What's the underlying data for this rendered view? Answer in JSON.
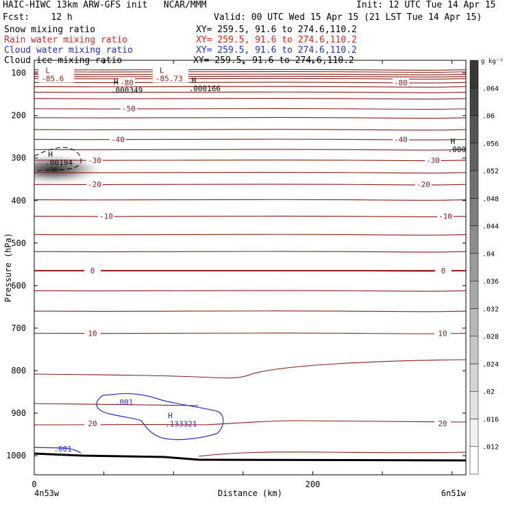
{
  "header": {
    "model_line": "HAIC-HIWC 13km ARW-GFS init   NCAR/MMM",
    "init_line": "Init: 12 UTC Tue 14 Apr 15",
    "fcst_line": "Fcst:    12 h",
    "valid_line": "Valid: 00 UTC Wed 15 Apr 15 (21 LST Tue 14 Apr 15)",
    "fields": [
      {
        "name": "Snow mixing ratio",
        "xy": "XY= 259.5, 91.6 to 274.6,110.2",
        "color": "#000000"
      },
      {
        "name": "Rain water mixing ratio",
        "xy": "XY= 259.5, 91.6 to 274.6,110.2",
        "color": "#e0201c"
      },
      {
        "name": "Cloud water mixing ratio",
        "xy": "XY= 259.5, 91.6 to 274.6,110.2",
        "color": "#1f2fd0"
      },
      {
        "name": "Cloud ice mixing ratio",
        "xy": "XY= 259.5, 91.6 to 274.6,110.2",
        "color": "#000000"
      }
    ]
  },
  "chart_data": {
    "type": "contour",
    "xlabel": "Distance (km)",
    "ylabel": "Pressure (hPa)",
    "x_range": [
      0,
      310
    ],
    "y_range": [
      1045,
      70
    ],
    "x_ticks": [
      0,
      200
    ],
    "y_ticks": [
      100,
      200,
      300,
      400,
      500,
      600,
      700,
      800,
      900,
      1000
    ],
    "x_endpoints": [
      "4n53w",
      "6n51w"
    ],
    "colorbar": {
      "unit": "g kg⁻¹",
      "levels": [
        0.012,
        0.016,
        0.02,
        0.024,
        0.028,
        0.032,
        0.036,
        0.04,
        0.044,
        0.048,
        0.052,
        0.056,
        0.06,
        0.064
      ],
      "tick_labels": [
        ".012",
        ".016",
        ".02",
        ".024",
        ".028",
        ".032",
        ".036",
        ".04",
        ".044",
        ".048",
        ".052",
        ".056",
        ".06",
        ".064"
      ]
    },
    "temperature_contours": {
      "color": "#8b1a1a",
      "interval_c": 5,
      "labeled": [
        {
          "value": -80,
          "label": "-80",
          "p": 122
        },
        {
          "value": -50,
          "label": "-50",
          "p": 184
        },
        {
          "value": -40,
          "label": "-40",
          "p": 256
        },
        {
          "value": -30,
          "label": "-30",
          "p": 305
        },
        {
          "value": -20,
          "label": "-20",
          "p": 362
        },
        {
          "value": -10,
          "label": "-10",
          "p": 437
        },
        {
          "value": 0,
          "label": "0",
          "p": 565
        },
        {
          "value": 10,
          "label": "10",
          "p": 712
        },
        {
          "value": 20,
          "label": "20",
          "p": 924
        }
      ]
    },
    "cloud_water_contour": {
      "label": ".001",
      "color": "#1f2fd0"
    },
    "cloud_ice_contour": {
      "label": ""
    },
    "extrema": [
      {
        "type": "L",
        "value": "-85.6",
        "x": 8,
        "p": 100
      },
      {
        "type": "L",
        "value": "-85.73",
        "x": 90,
        "p": 100
      },
      {
        "type": "H",
        "value": ".000349",
        "x": 57,
        "p": 127
      },
      {
        "type": "H",
        "value": ".000166",
        "x": 113,
        "p": 123
      },
      {
        "type": "H",
        "value": ".00194",
        "x": 10,
        "p": 297
      },
      {
        "type": "H",
        "value": ".000",
        "x": 299,
        "p": 267
      },
      {
        "type": "H",
        "value": ".133321",
        "x": 96,
        "p": 912
      }
    ],
    "cloud_water_labels": [
      {
        "value": ".001",
        "x": 58,
        "p": 874
      },
      {
        "value": ".001",
        "x": 14,
        "p": 984
      }
    ],
    "snow_max": {
      "x": 5,
      "p": 318,
      "value": 0.064
    }
  }
}
